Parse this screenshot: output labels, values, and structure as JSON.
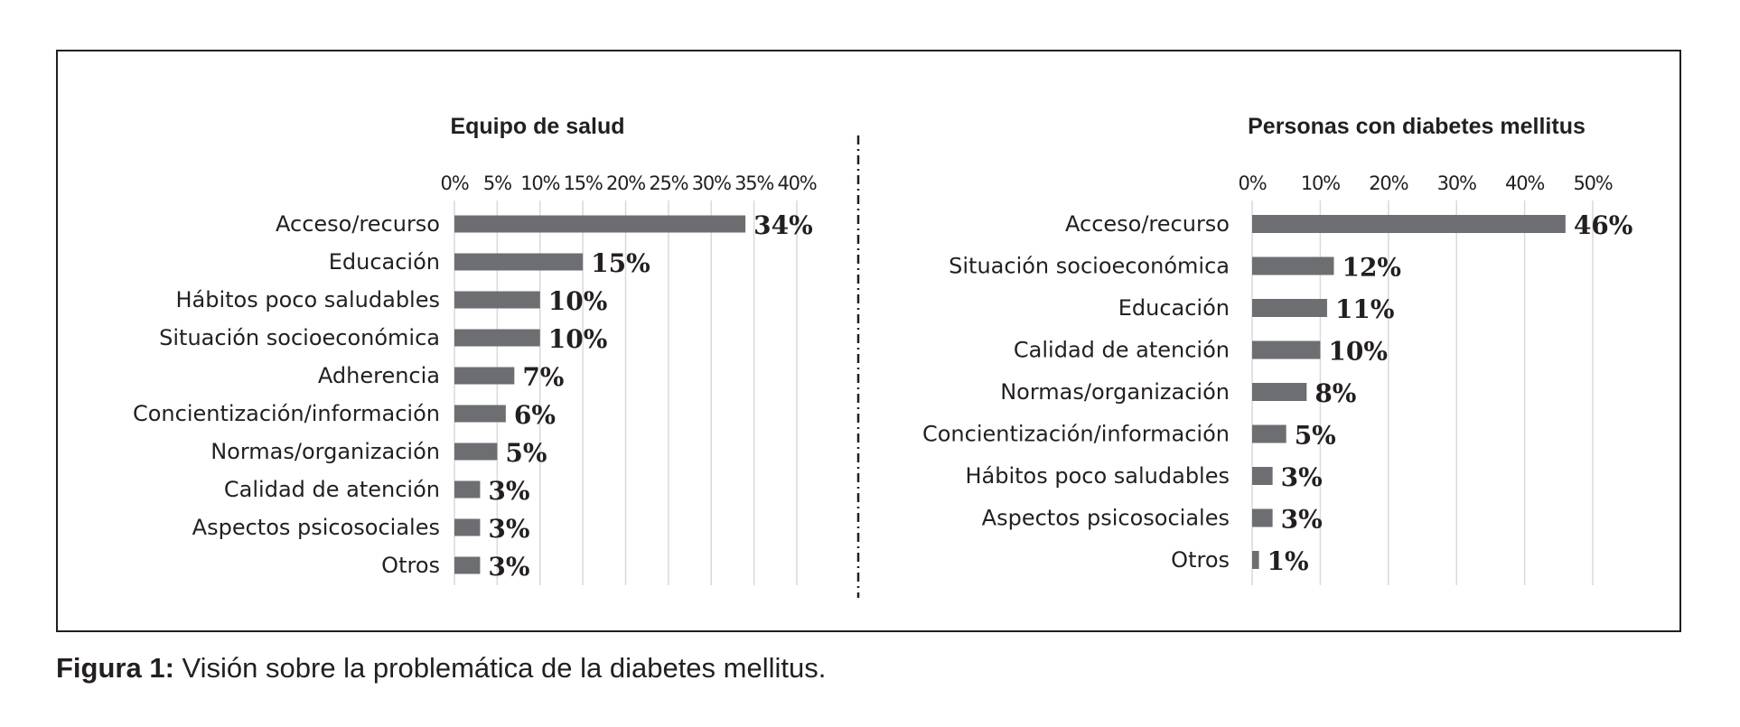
{
  "caption": {
    "label": "Figura 1:",
    "text": "Visión sobre la problemática de la diabetes mellitus."
  },
  "colors": {
    "bar": "#6d6e71",
    "grid": "#d9d9d9",
    "text": "#231f20",
    "frame": "#231f20"
  },
  "chart_data": [
    {
      "type": "bar",
      "orientation": "horizontal",
      "title": "Equipo de salud",
      "xlim": [
        0,
        40
      ],
      "ticks": [
        0,
        5,
        10,
        15,
        20,
        25,
        30,
        35,
        40
      ],
      "tick_labels": [
        "0%",
        "5%",
        "10%",
        "15%",
        "20%",
        "25%",
        "30%",
        "35%",
        "40%"
      ],
      "categories": [
        "Acceso/recurso",
        "Educación",
        "Hábitos poco saludables",
        "Situación socioeconómica",
        "Adherencia",
        "Concientización/información",
        "Normas/organización",
        "Calidad de atención",
        "Aspectos psicosociales",
        "Otros"
      ],
      "values": [
        34,
        15,
        10,
        10,
        7,
        6,
        5,
        3,
        3,
        3
      ],
      "value_labels": [
        "34%",
        "15%",
        "10%",
        "10%",
        "7%",
        "6%",
        "5%",
        "3%",
        "3%",
        "3%"
      ],
      "grid": true,
      "axis_position": "top"
    },
    {
      "type": "bar",
      "orientation": "horizontal",
      "title": "Personas con diabetes mellitus",
      "xlim": [
        0,
        50
      ],
      "ticks": [
        0,
        10,
        20,
        30,
        40,
        50
      ],
      "tick_labels": [
        "0%",
        "10%",
        "20%",
        "30%",
        "40%",
        "50%"
      ],
      "categories": [
        "Acceso/recurso",
        "Situación socioeconómica",
        "Educación",
        "Calidad de atención",
        "Normas/organización",
        "Concientización/información",
        "Hábitos poco saludables",
        "Aspectos psicosociales",
        "Otros"
      ],
      "values": [
        46,
        12,
        11,
        10,
        8,
        5,
        3,
        3,
        1
      ],
      "value_labels": [
        "46%",
        "12%",
        "11%",
        "10%",
        "8%",
        "5%",
        "3%",
        "3%",
        "1%"
      ],
      "grid": true,
      "axis_position": "top"
    }
  ]
}
